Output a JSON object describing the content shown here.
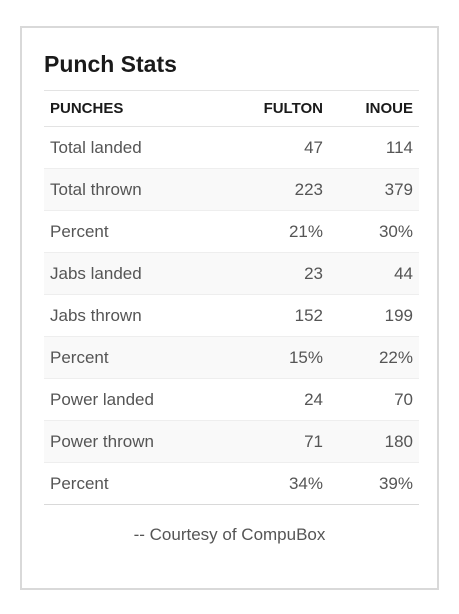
{
  "card": {
    "title": "Punch Stats",
    "headers": {
      "label": "PUNCHES",
      "fulton": "FULTON",
      "inoue": "INOUE"
    },
    "rows": [
      {
        "label": "Total landed",
        "fulton": "47",
        "inoue": "114"
      },
      {
        "label": "Total thrown",
        "fulton": "223",
        "inoue": "379"
      },
      {
        "label": "Percent",
        "fulton": "21%",
        "inoue": "30%"
      },
      {
        "label": "Jabs landed",
        "fulton": "23",
        "inoue": "44"
      },
      {
        "label": "Jabs thrown",
        "fulton": "152",
        "inoue": "199"
      },
      {
        "label": "Percent",
        "fulton": "15%",
        "inoue": "22%"
      },
      {
        "label": "Power landed",
        "fulton": "24",
        "inoue": "70"
      },
      {
        "label": "Power thrown",
        "fulton": "71",
        "inoue": "180"
      },
      {
        "label": "Percent",
        "fulton": "34%",
        "inoue": "39%"
      }
    ],
    "footer": "-- Courtesy of CompuBox"
  }
}
